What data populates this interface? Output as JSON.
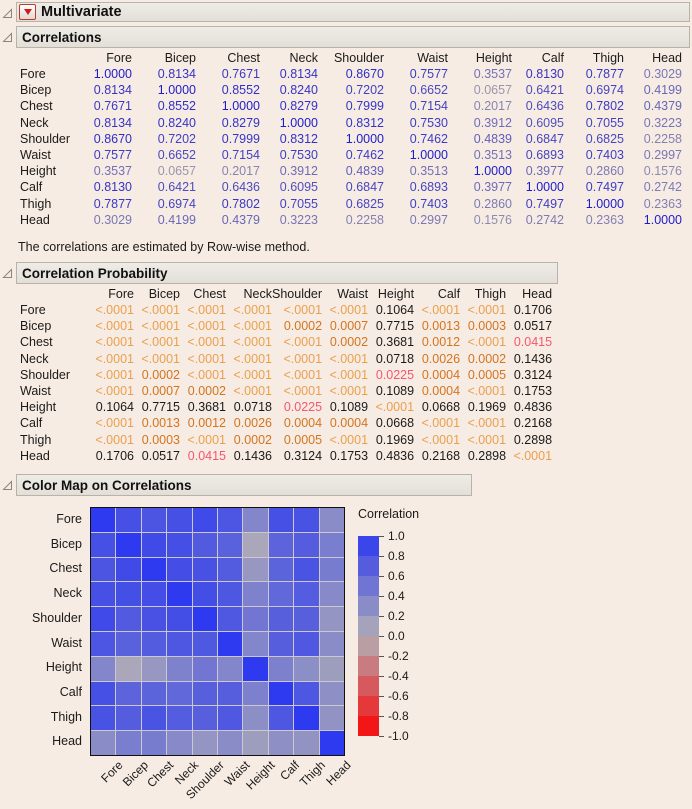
{
  "app": {
    "title": "Multivariate"
  },
  "sections": {
    "correlations": {
      "title": "Correlations",
      "note": "The correlations are estimated by Row-wise method."
    },
    "probability": {
      "title": "Correlation Probability"
    },
    "colormap": {
      "title": "Color Map on Correlations",
      "legend_title": "Correlation",
      "legend_ticks": [
        "1.0",
        "0.8",
        "0.6",
        "0.4",
        "0.2",
        "0.0",
        "-0.2",
        "-0.4",
        "-0.6",
        "-0.8",
        "-1.0"
      ]
    }
  },
  "variables": [
    "Fore",
    "Bicep",
    "Chest",
    "Neck",
    "Shoulder",
    "Waist",
    "Height",
    "Calf",
    "Thigh",
    "Head"
  ],
  "correlations": [
    [
      "1.0000",
      "0.8134",
      "0.7671",
      "0.8134",
      "0.8670",
      "0.7577",
      "0.3537",
      "0.8130",
      "0.7877",
      "0.3029"
    ],
    [
      "0.8134",
      "1.0000",
      "0.8552",
      "0.8240",
      "0.7202",
      "0.6652",
      "0.0657",
      "0.6421",
      "0.6974",
      "0.4199"
    ],
    [
      "0.7671",
      "0.8552",
      "1.0000",
      "0.8279",
      "0.7999",
      "0.7154",
      "0.2017",
      "0.6436",
      "0.7802",
      "0.4379"
    ],
    [
      "0.8134",
      "0.8240",
      "0.8279",
      "1.0000",
      "0.8312",
      "0.7530",
      "0.3912",
      "0.6095",
      "0.7055",
      "0.3223"
    ],
    [
      "0.8670",
      "0.7202",
      "0.7999",
      "0.8312",
      "1.0000",
      "0.7462",
      "0.4839",
      "0.6847",
      "0.6825",
      "0.2258"
    ],
    [
      "0.7577",
      "0.6652",
      "0.7154",
      "0.7530",
      "0.7462",
      "1.0000",
      "0.3513",
      "0.6893",
      "0.7403",
      "0.2997"
    ],
    [
      "0.3537",
      "0.0657",
      "0.2017",
      "0.3912",
      "0.4839",
      "0.3513",
      "1.0000",
      "0.3977",
      "0.2860",
      "0.1576"
    ],
    [
      "0.8130",
      "0.6421",
      "0.6436",
      "0.6095",
      "0.6847",
      "0.6893",
      "0.3977",
      "1.0000",
      "0.7497",
      "0.2742"
    ],
    [
      "0.7877",
      "0.6974",
      "0.7802",
      "0.7055",
      "0.6825",
      "0.7403",
      "0.2860",
      "0.7497",
      "1.0000",
      "0.2363"
    ],
    [
      "0.3029",
      "0.4199",
      "0.4379",
      "0.3223",
      "0.2258",
      "0.2997",
      "0.1576",
      "0.2742",
      "0.2363",
      "1.0000"
    ]
  ],
  "probabilities": [
    [
      "<.0001",
      "<.0001",
      "<.0001",
      "<.0001",
      "<.0001",
      "<.0001",
      "0.1064",
      "<.0001",
      "<.0001",
      "0.1706"
    ],
    [
      "<.0001",
      "<.0001",
      "<.0001",
      "<.0001",
      "0.0002",
      "0.0007",
      "0.7715",
      "0.0013",
      "0.0003",
      "0.0517"
    ],
    [
      "<.0001",
      "<.0001",
      "<.0001",
      "<.0001",
      "<.0001",
      "0.0002",
      "0.3681",
      "0.0012",
      "<.0001",
      "0.0415"
    ],
    [
      "<.0001",
      "<.0001",
      "<.0001",
      "<.0001",
      "<.0001",
      "<.0001",
      "0.0718",
      "0.0026",
      "0.0002",
      "0.1436"
    ],
    [
      "<.0001",
      "0.0002",
      "<.0001",
      "<.0001",
      "<.0001",
      "<.0001",
      "0.0225",
      "0.0004",
      "0.0005",
      "0.3124"
    ],
    [
      "<.0001",
      "0.0007",
      "0.0002",
      "<.0001",
      "<.0001",
      "<.0001",
      "0.1089",
      "0.0004",
      "<.0001",
      "0.1753"
    ],
    [
      "0.1064",
      "0.7715",
      "0.3681",
      "0.0718",
      "0.0225",
      "0.1089",
      "<.0001",
      "0.0668",
      "0.1969",
      "0.4836"
    ],
    [
      "<.0001",
      "0.0013",
      "0.0012",
      "0.0026",
      "0.0004",
      "0.0004",
      "0.0668",
      "<.0001",
      "<.0001",
      "0.2168"
    ],
    [
      "<.0001",
      "0.0003",
      "<.0001",
      "0.0002",
      "0.0005",
      "<.0001",
      "0.1969",
      "<.0001",
      "<.0001",
      "0.2898"
    ],
    [
      "0.1706",
      "0.0517",
      "0.0415",
      "0.1436",
      "0.3124",
      "0.1753",
      "0.4836",
      "0.2168",
      "0.2898",
      "<.0001"
    ]
  ],
  "colors": {
    "background": "#f7ece3",
    "corr_blue": "#2d3af0",
    "corr_gray": "#b2afb5",
    "corr_red": "#fa0505",
    "text_blue": "#1c1ccd",
    "text_gray": "#a29eaa",
    "p_very_small": "#eb9f4d",
    "p_small": "#d4741f",
    "p_moderate": "#f5566e",
    "p_ns": "#1a1a1a"
  },
  "chart_data": {
    "type": "heatmap",
    "title": "Color Map on Correlations",
    "x_categories": [
      "Fore",
      "Bicep",
      "Chest",
      "Neck",
      "Shoulder",
      "Waist",
      "Height",
      "Calf",
      "Thigh",
      "Head"
    ],
    "y_categories": [
      "Fore",
      "Bicep",
      "Chest",
      "Neck",
      "Shoulder",
      "Waist",
      "Height",
      "Calf",
      "Thigh",
      "Head"
    ],
    "values": [
      [
        1.0,
        0.8134,
        0.7671,
        0.8134,
        0.867,
        0.7577,
        0.3537,
        0.813,
        0.7877,
        0.3029
      ],
      [
        0.8134,
        1.0,
        0.8552,
        0.824,
        0.7202,
        0.6652,
        0.0657,
        0.6421,
        0.6974,
        0.4199
      ],
      [
        0.7671,
        0.8552,
        1.0,
        0.8279,
        0.7999,
        0.7154,
        0.2017,
        0.6436,
        0.7802,
        0.4379
      ],
      [
        0.8134,
        0.824,
        0.8279,
        1.0,
        0.8312,
        0.753,
        0.3912,
        0.6095,
        0.7055,
        0.3223
      ],
      [
        0.867,
        0.7202,
        0.7999,
        0.8312,
        1.0,
        0.7462,
        0.4839,
        0.6847,
        0.6825,
        0.2258
      ],
      [
        0.7577,
        0.6652,
        0.7154,
        0.753,
        0.7462,
        1.0,
        0.3513,
        0.6893,
        0.7403,
        0.2997
      ],
      [
        0.3537,
        0.0657,
        0.2017,
        0.3912,
        0.4839,
        0.3513,
        1.0,
        0.3977,
        0.286,
        0.1576
      ],
      [
        0.813,
        0.6421,
        0.6436,
        0.6095,
        0.6847,
        0.6893,
        0.3977,
        1.0,
        0.7497,
        0.2742
      ],
      [
        0.7877,
        0.6974,
        0.7802,
        0.7055,
        0.6825,
        0.7403,
        0.286,
        0.7497,
        1.0,
        0.2363
      ],
      [
        0.3029,
        0.4199,
        0.4379,
        0.3223,
        0.2258,
        0.2997,
        0.1576,
        0.2742,
        0.2363,
        1.0
      ]
    ],
    "legend": {
      "title": "Correlation",
      "range": [
        -1.0,
        1.0
      ],
      "tick_step": 0.2,
      "position": "right"
    }
  }
}
